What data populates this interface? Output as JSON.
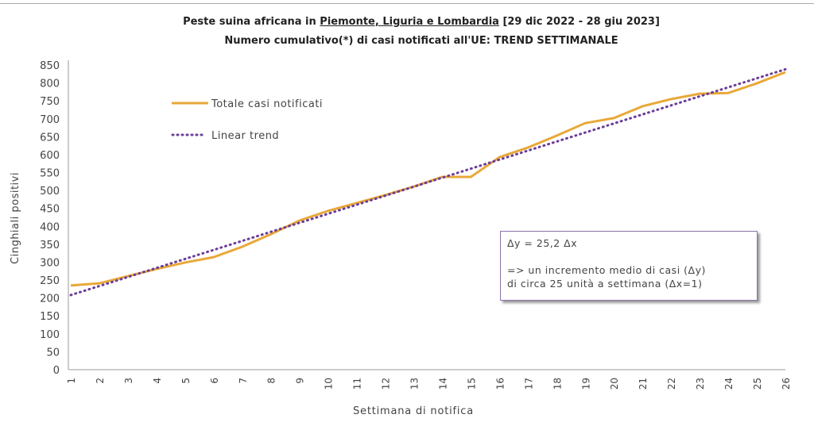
{
  "chart_data": {
    "type": "line",
    "title_prefix": "Peste suina africana in ",
    "title_regions": "Piemonte, Liguria e Lombardia",
    "title_suffix": " [29 dic 2022 - 28 giu 2023]",
    "subtitle": "Numero cumulativo(*) di casi notificati all'UE: TREND SETTIMANALE",
    "xlabel": "Settimana di notifica",
    "ylabel": "Cinghiali positivi",
    "ylim": [
      0,
      850
    ],
    "yticks": [
      0,
      50,
      100,
      150,
      200,
      250,
      300,
      350,
      400,
      450,
      500,
      550,
      600,
      650,
      700,
      750,
      800,
      850
    ],
    "x": [
      1,
      2,
      3,
      4,
      5,
      6,
      7,
      8,
      9,
      10,
      11,
      12,
      13,
      14,
      15,
      16,
      17,
      18,
      19,
      20,
      21,
      22,
      23,
      24,
      25,
      26
    ],
    "series": [
      {
        "name": "Totale casi notificati",
        "color": "#E8A838",
        "style": "solid",
        "values": [
          235,
          241,
          261,
          281,
          299,
          314,
          343,
          378,
          416,
          443,
          465,
          487,
          511,
          538,
          538,
          593,
          620,
          653,
          688,
          702,
          735,
          755,
          770,
          772,
          799,
          830
        ]
      },
      {
        "name": "Linear trend",
        "color": "#6A3D9A",
        "style": "dotted",
        "intercept": 183,
        "slope": 25.2
      }
    ],
    "legend": "top-left",
    "grid": false,
    "annotation": {
      "line1": "Δy = 25,2 Δx",
      "line2": "=>  un incremento medio di casi (Δy)",
      "line3": "di circa 25 unità a settimana (Δx=1)"
    }
  }
}
